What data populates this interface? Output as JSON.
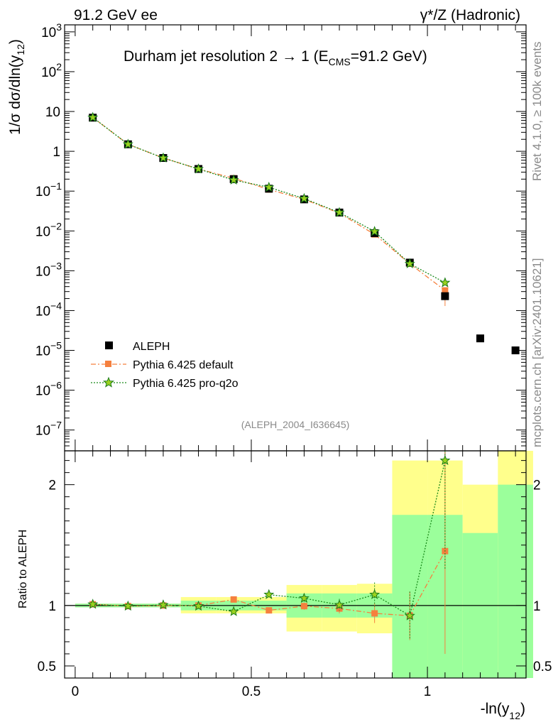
{
  "header": {
    "left": "91.2 GeV ee",
    "right": "γ*/Z (Hadronic)"
  },
  "side_labels": {
    "rivet": "Rivet 4.1.0, ≥ 100k events",
    "mcplots": "mcplots.cern.ch [arXiv:2401.10621]"
  },
  "colors": {
    "aleph": "#000000",
    "pythia_default": "#f5803e",
    "pythia_proq2o": "#1a8a1a",
    "band_inner": "#9bff9b",
    "band_outer": "#ffff8c"
  },
  "chart_data": [
    {
      "type": "scatter",
      "panel": "main",
      "title_main": "Durham jet resolution 2",
      "title_arrow": "→",
      "title_rest_a": "1 (E",
      "title_sub": "CMS",
      "title_rest_b": "=91.2 GeV)",
      "ylabel": "1/σ  dσ/dln(y",
      "ylabel_sub": "12",
      "ylabel_end": ")",
      "yscale": "log",
      "ylim": [
        3e-08,
        1500
      ],
      "xlim": [
        -0.03,
        1.28
      ],
      "ytick_labels": [
        {
          "base": "10",
          "exp": "−7"
        },
        {
          "base": "10",
          "exp": "−6"
        },
        {
          "base": "10",
          "exp": "−5"
        },
        {
          "base": "10",
          "exp": "−4"
        },
        {
          "base": "10",
          "exp": "−3"
        },
        {
          "base": "10",
          "exp": "−2"
        },
        {
          "base": "10",
          "exp": "−1"
        },
        {
          "base": "1",
          "exp": ""
        },
        {
          "base": "10",
          "exp": ""
        },
        {
          "base": "10",
          "exp": "2"
        },
        {
          "base": "10",
          "exp": "3"
        }
      ],
      "legend_position": "bottom-left",
      "analysis_label": "(ALEPH_2004_I636645)",
      "series": [
        {
          "name": "ALEPH",
          "x": [
            0.05,
            0.15,
            0.25,
            0.35,
            0.45,
            0.55,
            0.65,
            0.75,
            0.85,
            0.95,
            1.05,
            1.15,
            1.25
          ],
          "values": [
            7.0,
            1.5,
            0.68,
            0.36,
            0.2,
            0.115,
            0.062,
            0.029,
            0.0088,
            0.0016,
            0.00023,
            2e-05,
            1e-05
          ]
        },
        {
          "name": "Pythia 6.425 default",
          "x": [
            0.05,
            0.15,
            0.25,
            0.35,
            0.45,
            0.55,
            0.65,
            0.75,
            0.85,
            0.95,
            1.05
          ],
          "values": [
            7.1,
            1.5,
            0.68,
            0.36,
            0.21,
            0.11,
            0.062,
            0.028,
            0.0082,
            0.0015,
            0.00032
          ],
          "err_low": [
            0,
            0,
            0,
            0,
            0,
            0,
            0,
            0,
            0,
            0,
            0.00019
          ]
        },
        {
          "name": "Pythia 6.425 pro-q2o",
          "x": [
            0.05,
            0.15,
            0.25,
            0.35,
            0.45,
            0.55,
            0.65,
            0.75,
            0.85,
            0.95,
            1.05
          ],
          "values": [
            7.1,
            1.5,
            0.68,
            0.36,
            0.19,
            0.125,
            0.065,
            0.029,
            0.0097,
            0.0015,
            0.0005
          ]
        }
      ]
    },
    {
      "type": "scatter",
      "panel": "ratio",
      "ylabel": "Ratio to ALEPH",
      "xlabel_main": "-ln(y",
      "xlabel_sub": "12",
      "xlabel_end": ")",
      "ylim": [
        0.4,
        2.28
      ],
      "xlim": [
        -0.03,
        1.28
      ],
      "x_ticks": [
        0,
        0.5,
        1
      ],
      "x_tick_labels": [
        "0",
        "0.5",
        "1"
      ],
      "y_ticks": [
        0.5,
        1,
        2
      ],
      "y_tick_labels": [
        "0.5",
        "1",
        "2"
      ],
      "bands": {
        "edges": [
          0.0,
          0.1,
          0.2,
          0.3,
          0.4,
          0.5,
          0.6,
          0.7,
          0.8,
          0.9,
          1.0,
          1.1,
          1.2,
          1.3
        ],
        "inner_low": [
          0.985,
          0.985,
          0.985,
          0.96,
          0.96,
          0.96,
          0.9,
          0.9,
          0.9,
          0.3,
          0.3,
          0.3,
          0.3
        ],
        "inner_high": [
          1.015,
          1.015,
          1.015,
          1.04,
          1.04,
          1.04,
          1.1,
          1.1,
          1.1,
          1.75,
          1.75,
          1.6,
          2.0
        ],
        "outer_low": [
          0.985,
          0.985,
          0.985,
          0.935,
          0.935,
          0.935,
          0.785,
          0.785,
          0.77,
          0.3,
          0.3,
          0.5,
          0.3
        ],
        "outer_high": [
          1.015,
          1.015,
          1.015,
          1.07,
          1.07,
          1.07,
          1.17,
          1.17,
          1.18,
          2.2,
          2.2,
          2.0,
          2.3
        ]
      },
      "series": [
        {
          "name": "Pythia 6.425 default",
          "x": [
            0.05,
            0.15,
            0.25,
            0.35,
            0.45,
            0.55,
            0.65,
            0.75,
            0.85,
            0.95,
            1.05
          ],
          "values": [
            1.01,
            0.995,
            1.0,
            1.0,
            1.05,
            0.96,
            0.995,
            0.975,
            0.935,
            0.915,
            1.45
          ],
          "err": [
            0,
            0,
            0,
            0,
            0.01,
            0.02,
            0.03,
            0.04,
            0.08,
            0.2,
            0.85
          ]
        },
        {
          "name": "Pythia 6.425 pro-q2o",
          "x": [
            0.05,
            0.15,
            0.25,
            0.35,
            0.45,
            0.55,
            0.65,
            0.75,
            0.85,
            0.95,
            1.05
          ],
          "values": [
            1.01,
            0.995,
            1.005,
            0.995,
            0.95,
            1.09,
            1.06,
            1.005,
            1.09,
            0.915,
            2.2
          ],
          "err": [
            0,
            0,
            0,
            0,
            0.01,
            0.02,
            0.03,
            0.05,
            0.1,
            0.2,
            0.9
          ]
        }
      ]
    }
  ]
}
